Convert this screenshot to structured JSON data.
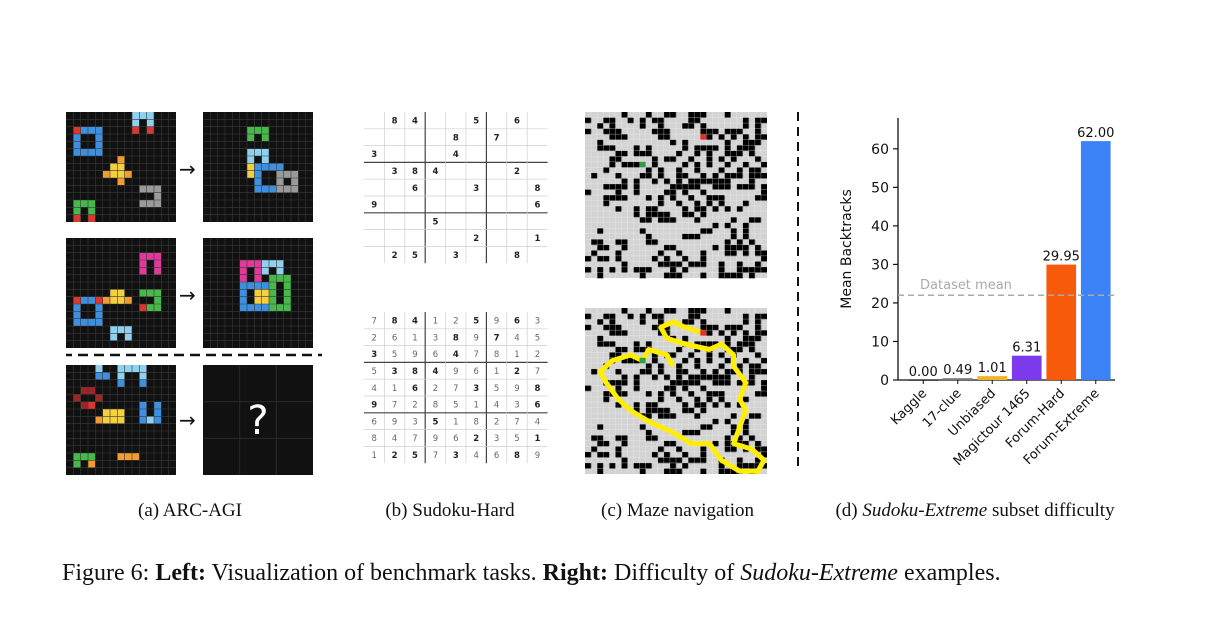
{
  "panels": {
    "a": {
      "caption": "(a) ARC-AGI",
      "arrow": "→",
      "question": "?",
      "colors": {
        "black": "#111111",
        "grid": "#3a3a3a",
        "blue": "#3d8fe0",
        "lightblue": "#8fd0ef",
        "red": "#d9382c",
        "yellow": "#f4d03f",
        "orange": "#f29b2e",
        "green": "#46b94a",
        "pink": "#e0399a",
        "gray": "#9a9a9a",
        "maroon": "#a0232a"
      }
    },
    "b": {
      "caption": "(b) Sudoku-Hard",
      "puzzle": [
        [
          "",
          "8",
          "4",
          "",
          "",
          "5",
          "",
          "6",
          ""
        ],
        [
          "",
          "",
          "",
          "",
          "8",
          "",
          "7",
          "",
          ""
        ],
        [
          "3",
          "",
          "",
          "",
          "4",
          "",
          "",
          "",
          ""
        ],
        [
          "",
          "3",
          "8",
          "4",
          "",
          "",
          "",
          "2",
          ""
        ],
        [
          "",
          "",
          "6",
          "",
          "",
          "3",
          "",
          "",
          "8"
        ],
        [
          "9",
          "",
          "",
          "",
          "",
          "",
          "",
          "",
          "6"
        ],
        [
          "",
          "",
          "",
          "5",
          "",
          "",
          "",
          "",
          ""
        ],
        [
          "",
          "",
          "",
          "",
          "",
          "2",
          "",
          "",
          "1"
        ],
        [
          "",
          "2",
          "5",
          "",
          "3",
          "",
          "",
          "8",
          ""
        ]
      ],
      "solution": [
        [
          "7",
          "8",
          "4",
          "1",
          "2",
          "5",
          "9",
          "6",
          "3"
        ],
        [
          "2",
          "6",
          "1",
          "3",
          "8",
          "9",
          "7",
          "4",
          "5"
        ],
        [
          "3",
          "5",
          "9",
          "6",
          "4",
          "7",
          "8",
          "1",
          "2"
        ],
        [
          "5",
          "3",
          "8",
          "4",
          "9",
          "6",
          "1",
          "2",
          "7"
        ],
        [
          "4",
          "1",
          "6",
          "2",
          "7",
          "3",
          "5",
          "9",
          "8"
        ],
        [
          "9",
          "7",
          "2",
          "8",
          "5",
          "1",
          "4",
          "3",
          "6"
        ],
        [
          "6",
          "9",
          "3",
          "5",
          "1",
          "8",
          "2",
          "7",
          "4"
        ],
        [
          "8",
          "4",
          "7",
          "9",
          "6",
          "2",
          "3",
          "5",
          "1"
        ],
        [
          "1",
          "2",
          "5",
          "7",
          "3",
          "4",
          "6",
          "8",
          "9"
        ]
      ]
    },
    "c": {
      "caption": "(c) Maze navigation",
      "colors": {
        "wall": "#000000",
        "floor": "#d3d3d3",
        "start": "#2ea043",
        "goal": "#e0302a",
        "path": "#ffee00"
      }
    },
    "d": {
      "caption_prefix": "(d) ",
      "caption_italic": "Sudoku-Extreme",
      "caption_suffix": " subset difficulty"
    }
  },
  "chart_data": {
    "type": "bar",
    "categories": [
      "Kaggle",
      "17-clue",
      "Unbiased",
      "Magictour 1465",
      "Forum-Hard",
      "Forum-Extreme"
    ],
    "values": [
      0.0,
      0.49,
      1.01,
      6.31,
      29.95,
      62.0
    ],
    "value_labels": [
      "0.00",
      "0.49",
      "1.01",
      "6.31",
      "29.95",
      "62.00"
    ],
    "colors": [
      "#2b2b2b",
      "#7f7f7f",
      "#f0b429",
      "#7c3aed",
      "#f85a0c",
      "#3b82f6"
    ],
    "ylabel": "Mean Backtracks",
    "yticks": [
      0,
      10,
      20,
      30,
      40,
      50,
      60
    ],
    "ylim": [
      0,
      68
    ],
    "reference_line": {
      "label": "Dataset mean",
      "value": 22
    }
  },
  "figure_caption": {
    "number": "Figure 6: ",
    "left_label": "Left:",
    "left_text": " Visualization of benchmark tasks. ",
    "right_label": "Right:",
    "right_text": " Difficulty of ",
    "right_italic": "Sudoku-Extreme",
    "right_end": " examples."
  }
}
